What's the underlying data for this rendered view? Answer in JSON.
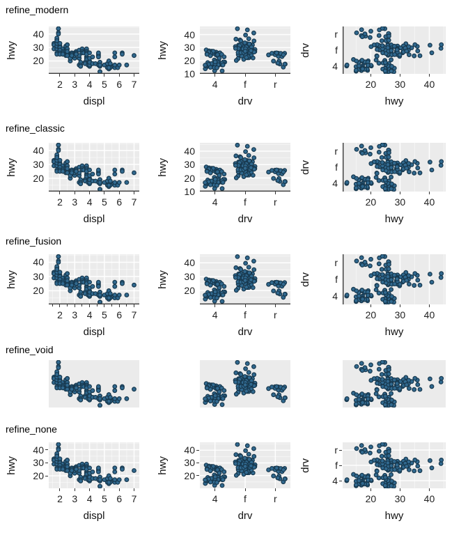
{
  "figure": {
    "background": "#ffffff",
    "panel_background": "#ebebeb",
    "grid_major_color": "#ffffff",
    "grid_minor_color": "#f5f5f5",
    "axis_line_color": "#383838",
    "tick_color": "#333333",
    "text_color": "#212121",
    "point_fill": "#31698f",
    "point_stroke": "#17384e"
  },
  "rows": [
    {
      "title": "refine_modern"
    },
    {
      "title": "refine_classic"
    },
    {
      "title": "refine_fusion"
    },
    {
      "title": "refine_void"
    },
    {
      "title": "refine_none"
    }
  ],
  "chart_data": {
    "type": "scatter",
    "description": "5x3 grid of scatter plots of the mpg dataset rendered with five themes (rows: refine_modern, refine_classic, refine_fusion, refine_void, refine_none). Columns: hwy~displ, hwy~drv (jittered), drv~hwy (jittered).",
    "dataset": {
      "fields": [
        "displ",
        "hwy",
        "drv"
      ],
      "categories": [
        "4",
        "f",
        "r"
      ],
      "points": [
        [
          1.6,
          33,
          "f"
        ],
        [
          1.6,
          32,
          "f"
        ],
        [
          1.6,
          32,
          "f"
        ],
        [
          1.6,
          29,
          "f"
        ],
        [
          1.6,
          32,
          "f"
        ],
        [
          1.8,
          29,
          "f"
        ],
        [
          1.8,
          29,
          "f"
        ],
        [
          1.8,
          31,
          "f"
        ],
        [
          1.8,
          34,
          "f"
        ],
        [
          1.8,
          36,
          "f"
        ],
        [
          1.8,
          36,
          "f"
        ],
        [
          1.8,
          33,
          "f"
        ],
        [
          1.8,
          35,
          "f"
        ],
        [
          1.8,
          37,
          "f"
        ],
        [
          1.8,
          35,
          "f"
        ],
        [
          1.9,
          44,
          "f"
        ],
        [
          1.9,
          44,
          "f"
        ],
        [
          1.9,
          41,
          "f"
        ],
        [
          1.9,
          40,
          "f"
        ],
        [
          2.0,
          31,
          "f"
        ],
        [
          2.0,
          30,
          "f"
        ],
        [
          2.0,
          29,
          "f"
        ],
        [
          2.0,
          29,
          "f"
        ],
        [
          2.0,
          31,
          "f"
        ],
        [
          2.0,
          27,
          "f"
        ],
        [
          2.0,
          30,
          "f"
        ],
        [
          2.0,
          33,
          "f"
        ],
        [
          2.2,
          29,
          "f"
        ],
        [
          2.2,
          27,
          "f"
        ],
        [
          2.4,
          30,
          "f"
        ],
        [
          2.4,
          31,
          "f"
        ],
        [
          2.4,
          27,
          "f"
        ],
        [
          2.4,
          24,
          "f"
        ],
        [
          2.5,
          32,
          "f"
        ],
        [
          2.5,
          32,
          "f"
        ],
        [
          2.5,
          29,
          "f"
        ],
        [
          2.5,
          29,
          "f"
        ],
        [
          2.5,
          26,
          "f"
        ],
        [
          2.8,
          26,
          "f"
        ],
        [
          2.8,
          26,
          "f"
        ],
        [
          2.8,
          24,
          "f"
        ],
        [
          2.8,
          25,
          "f"
        ],
        [
          2.8,
          23,
          "f"
        ],
        [
          3.0,
          26,
          "f"
        ],
        [
          3.0,
          25,
          "f"
        ],
        [
          3.0,
          22,
          "f"
        ],
        [
          3.0,
          24,
          "f"
        ],
        [
          3.1,
          27,
          "f"
        ],
        [
          3.1,
          26,
          "f"
        ],
        [
          3.1,
          25,
          "f"
        ],
        [
          3.3,
          28,
          "f"
        ],
        [
          3.3,
          22,
          "f"
        ],
        [
          3.3,
          22,
          "f"
        ],
        [
          3.3,
          24,
          "f"
        ],
        [
          3.5,
          29,
          "f"
        ],
        [
          3.5,
          27,
          "f"
        ],
        [
          3.5,
          26,
          "f"
        ],
        [
          3.6,
          26,
          "f"
        ],
        [
          3.8,
          28,
          "f"
        ],
        [
          3.8,
          29,
          "f"
        ],
        [
          3.8,
          26,
          "f"
        ],
        [
          3.8,
          27,
          "f"
        ],
        [
          3.8,
          23,
          "f"
        ],
        [
          3.8,
          22,
          "f"
        ],
        [
          3.8,
          21,
          "f"
        ],
        [
          4.0,
          20,
          "f"
        ],
        [
          4.0,
          22,
          "f"
        ],
        [
          1.8,
          26,
          "4"
        ],
        [
          1.8,
          25,
          "4"
        ],
        [
          2.0,
          28,
          "4"
        ],
        [
          2.0,
          27,
          "4"
        ],
        [
          2.0,
          27,
          "4"
        ],
        [
          2.0,
          28,
          "4"
        ],
        [
          2.0,
          26,
          "4"
        ],
        [
          2.0,
          25,
          "4"
        ],
        [
          2.2,
          26,
          "4"
        ],
        [
          2.2,
          25,
          "4"
        ],
        [
          2.5,
          25,
          "4"
        ],
        [
          2.5,
          26,
          "4"
        ],
        [
          2.5,
          27,
          "4"
        ],
        [
          2.5,
          25,
          "4"
        ],
        [
          2.5,
          26,
          "4"
        ],
        [
          2.5,
          24,
          "4"
        ],
        [
          2.5,
          27,
          "4"
        ],
        [
          2.7,
          20,
          "4"
        ],
        [
          2.7,
          20,
          "4"
        ],
        [
          2.7,
          22,
          "4"
        ],
        [
          2.8,
          25,
          "4"
        ],
        [
          2.8,
          25,
          "4"
        ],
        [
          2.8,
          24,
          "4"
        ],
        [
          3.1,
          25,
          "4"
        ],
        [
          3.1,
          25,
          "4"
        ],
        [
          3.3,
          17,
          "4"
        ],
        [
          3.4,
          19,
          "4"
        ],
        [
          3.4,
          17,
          "4"
        ],
        [
          3.4,
          16,
          "4"
        ],
        [
          3.7,
          19,
          "4"
        ],
        [
          3.7,
          18,
          "4"
        ],
        [
          3.9,
          17,
          "4"
        ],
        [
          3.9,
          17,
          "4"
        ],
        [
          4.0,
          17,
          "4"
        ],
        [
          4.0,
          16,
          "4"
        ],
        [
          4.0,
          18,
          "4"
        ],
        [
          4.0,
          17,
          "4"
        ],
        [
          4.0,
          19,
          "4"
        ],
        [
          4.2,
          23,
          "4"
        ],
        [
          4.2,
          18,
          "4"
        ],
        [
          4.4,
          18,
          "4"
        ],
        [
          4.6,
          17,
          "4"
        ],
        [
          4.7,
          19,
          "4"
        ],
        [
          4.7,
          19,
          "4"
        ],
        [
          4.7,
          17,
          "4"
        ],
        [
          4.7,
          16,
          "4"
        ],
        [
          4.7,
          12,
          "4"
        ],
        [
          4.7,
          12,
          "4"
        ],
        [
          4.7,
          17,
          "4"
        ],
        [
          5.2,
          17,
          "4"
        ],
        [
          5.2,
          15,
          "4"
        ],
        [
          5.3,
          19,
          "4"
        ],
        [
          5.3,
          14,
          "4"
        ],
        [
          5.4,
          17,
          "4"
        ],
        [
          5.4,
          15,
          "4"
        ],
        [
          5.7,
          16,
          "4"
        ],
        [
          5.7,
          15,
          "4"
        ],
        [
          5.9,
          15,
          "4"
        ],
        [
          6.5,
          17,
          "4"
        ],
        [
          3.8,
          26,
          "r"
        ],
        [
          3.8,
          25,
          "r"
        ],
        [
          4.0,
          26,
          "r"
        ],
        [
          4.6,
          24,
          "r"
        ],
        [
          4.6,
          25,
          "r"
        ],
        [
          4.6,
          26,
          "r"
        ],
        [
          4.6,
          23,
          "r"
        ],
        [
          5.0,
          17,
          "r"
        ],
        [
          5.2,
          18,
          "r"
        ],
        [
          5.3,
          20,
          "r"
        ],
        [
          5.3,
          20,
          "r"
        ],
        [
          5.3,
          15,
          "r"
        ],
        [
          5.4,
          18,
          "r"
        ],
        [
          5.7,
          17,
          "r"
        ],
        [
          5.7,
          26,
          "r"
        ],
        [
          5.7,
          23,
          "r"
        ],
        [
          6.0,
          17,
          "r"
        ],
        [
          6.2,
          26,
          "r"
        ],
        [
          6.2,
          25,
          "r"
        ],
        [
          7.0,
          24,
          "r"
        ]
      ]
    },
    "charts": [
      {
        "row": 0,
        "col": 0,
        "theme": "refine_modern",
        "x": "displ",
        "y": "hwy",
        "xlabel": "displ",
        "ylabel": "hwy",
        "x_ticks": [
          2,
          3,
          4,
          5,
          6,
          7
        ],
        "y_ticks": [
          20,
          30,
          40
        ],
        "x_minor": [
          1.5,
          2.5,
          3.5,
          4.5,
          5.5,
          6.5
        ],
        "y_minor": [
          15,
          25,
          35,
          45
        ],
        "x_range": [
          1.25,
          7.35
        ],
        "y_range": [
          10.4,
          45.6
        ],
        "grid_h": "mm",
        "grid_v": "none",
        "axis_line": "bottom",
        "ticks_x": "major",
        "ticks_y": "none"
      },
      {
        "row": 0,
        "col": 1,
        "theme": "refine_modern",
        "x": "drv",
        "y": "hwy",
        "xlabel": "drv",
        "ylabel": "hwy",
        "x_ticks": [
          "4",
          "f",
          "r"
        ],
        "y_ticks": [
          10,
          20,
          30,
          40
        ],
        "y_minor": [
          15,
          25,
          35,
          45
        ],
        "y_range": [
          9.9,
          46.2
        ],
        "grid_h": "mm",
        "grid_v": "none",
        "axis_line": "bottom",
        "ticks_x": "major",
        "ticks_y": "none"
      },
      {
        "row": 0,
        "col": 2,
        "theme": "refine_modern",
        "x": "hwy",
        "y": "drv",
        "xlabel": "hwy",
        "ylabel": "drv",
        "x_ticks": [
          20,
          30,
          40
        ],
        "y_ticks": [
          "r",
          "f",
          "4"
        ],
        "x_minor": [
          15,
          25,
          35,
          45
        ],
        "x_range": [
          10.4,
          45.6
        ],
        "grid_h": "none",
        "grid_v": "mm",
        "axis_line": "left",
        "ticks_x": "major",
        "ticks_y": "none"
      },
      {
        "row": 1,
        "col": 0,
        "theme": "refine_classic",
        "x": "displ",
        "y": "hwy",
        "xlabel": "displ",
        "ylabel": "hwy",
        "x_ticks": [
          2,
          3,
          4,
          5,
          6,
          7
        ],
        "y_ticks": [
          20,
          30,
          40
        ],
        "x_minor": [
          1.5,
          2.5,
          3.5,
          4.5,
          5.5,
          6.5
        ],
        "y_minor": [
          15,
          25,
          35,
          45
        ],
        "x_range": [
          1.25,
          7.35
        ],
        "y_range": [
          10.4,
          45.6
        ],
        "grid_h": "mm",
        "grid_v": "mm",
        "axis_line": "bottom",
        "ticks_x": "major",
        "ticks_y": "none"
      },
      {
        "row": 1,
        "col": 1,
        "theme": "refine_classic",
        "x": "drv",
        "y": "hwy",
        "xlabel": "drv",
        "ylabel": "hwy",
        "x_ticks": [
          "4",
          "f",
          "r"
        ],
        "y_ticks": [
          10,
          20,
          30,
          40
        ],
        "y_minor": [
          15,
          25,
          35,
          45
        ],
        "y_range": [
          9.9,
          46.2
        ],
        "grid_h": "mm",
        "grid_v": "none",
        "axis_line": "bottom",
        "ticks_x": "major",
        "ticks_y": "none"
      },
      {
        "row": 1,
        "col": 2,
        "theme": "refine_classic",
        "x": "hwy",
        "y": "drv",
        "xlabel": "hwy",
        "ylabel": "drv",
        "x_ticks": [
          20,
          30,
          40
        ],
        "y_ticks": [
          "r",
          "f",
          "4"
        ],
        "x_minor": [
          15,
          25,
          35,
          45
        ],
        "x_range": [
          10.4,
          45.6
        ],
        "grid_h": "none",
        "grid_v": "mm",
        "axis_line": "left",
        "ticks_x": "major",
        "ticks_y": "none"
      },
      {
        "row": 2,
        "col": 0,
        "theme": "refine_fusion",
        "x": "displ",
        "y": "hwy",
        "xlabel": "displ",
        "ylabel": "hwy",
        "x_ticks": [
          2,
          3,
          4,
          5,
          6,
          7
        ],
        "y_ticks": [
          20,
          30,
          40
        ],
        "x_minor": [
          1.5,
          2.5,
          3.5,
          4.5,
          5.5,
          6.5
        ],
        "y_minor": [
          15,
          25,
          35,
          45
        ],
        "x_range": [
          1.25,
          7.35
        ],
        "y_range": [
          10.4,
          45.6
        ],
        "grid_h": "mm",
        "grid_v": "mm",
        "axis_line": "bottom",
        "ticks_x": "major+minor",
        "ticks_y": "none"
      },
      {
        "row": 2,
        "col": 1,
        "theme": "refine_fusion",
        "x": "drv",
        "y": "hwy",
        "xlabel": "drv",
        "ylabel": "hwy",
        "x_ticks": [
          "4",
          "f",
          "r"
        ],
        "y_ticks": [
          20,
          30,
          40
        ],
        "y_minor": [
          15,
          25,
          35,
          45
        ],
        "y_range": [
          9.9,
          46.2
        ],
        "grid_h": "mm",
        "grid_v": "none",
        "axis_line": "bottom",
        "ticks_x": "major",
        "ticks_y": "none"
      },
      {
        "row": 2,
        "col": 2,
        "theme": "refine_fusion",
        "x": "hwy",
        "y": "drv",
        "xlabel": "hwy",
        "ylabel": "drv",
        "x_ticks": [
          20,
          30,
          40
        ],
        "y_ticks": [
          "r",
          "f",
          "4"
        ],
        "x_minor": [
          15,
          25,
          35,
          45
        ],
        "x_range": [
          10.4,
          45.6
        ],
        "grid_h": "none",
        "grid_v": "mm",
        "axis_line": "left",
        "ticks_x": "major",
        "ticks_y": "none"
      },
      {
        "row": 3,
        "col": 0,
        "theme": "refine_void",
        "x": "displ",
        "y": "hwy",
        "xlabel": "",
        "ylabel": "",
        "x_ticks": [],
        "y_ticks": [],
        "x_range": [
          1.25,
          7.35
        ],
        "y_range": [
          10.4,
          45.6
        ],
        "grid_h": "none",
        "grid_v": "none",
        "axis_line": "none",
        "ticks_x": "none",
        "ticks_y": "none"
      },
      {
        "row": 3,
        "col": 1,
        "theme": "refine_void",
        "x": "drv",
        "y": "hwy",
        "xlabel": "",
        "ylabel": "",
        "x_ticks": [],
        "y_ticks": [],
        "y_range": [
          9.9,
          46.2
        ],
        "grid_h": "none",
        "grid_v": "none",
        "axis_line": "none",
        "ticks_x": "none",
        "ticks_y": "none"
      },
      {
        "row": 3,
        "col": 2,
        "theme": "refine_void",
        "x": "hwy",
        "y": "drv",
        "xlabel": "",
        "ylabel": "",
        "x_ticks": [],
        "y_ticks": [],
        "x_range": [
          10.4,
          45.6
        ],
        "grid_h": "none",
        "grid_v": "none",
        "axis_line": "none",
        "ticks_x": "none",
        "ticks_y": "none"
      },
      {
        "row": 4,
        "col": 0,
        "theme": "refine_none",
        "x": "displ",
        "y": "hwy",
        "xlabel": "displ",
        "ylabel": "hwy",
        "x_ticks": [
          2,
          3,
          4,
          5,
          6,
          7
        ],
        "y_ticks": [
          20,
          30,
          40
        ],
        "x_minor": [
          1.5,
          2.5,
          3.5,
          4.5,
          5.5,
          6.5
        ],
        "y_minor": [
          15,
          25,
          35,
          45
        ],
        "x_range": [
          1.25,
          7.35
        ],
        "y_range": [
          10.4,
          45.6
        ],
        "grid_h": "mm",
        "grid_v": "mm",
        "axis_line": "none",
        "ticks_x": "major",
        "ticks_y": "major"
      },
      {
        "row": 4,
        "col": 1,
        "theme": "refine_none",
        "x": "drv",
        "y": "hwy",
        "xlabel": "drv",
        "ylabel": "hwy",
        "x_ticks": [
          "4",
          "f",
          "r"
        ],
        "y_ticks": [
          20,
          30,
          40
        ],
        "y_minor": [
          15,
          25,
          35,
          45
        ],
        "y_range": [
          9.9,
          46.2
        ],
        "grid_h": "mm",
        "grid_v": "cats",
        "axis_line": "none",
        "ticks_x": "major",
        "ticks_y": "major"
      },
      {
        "row": 4,
        "col": 2,
        "theme": "refine_none",
        "x": "hwy",
        "y": "drv",
        "xlabel": "hwy",
        "ylabel": "drv",
        "x_ticks": [
          20,
          30,
          40
        ],
        "y_ticks": [
          "r",
          "f",
          "4"
        ],
        "x_minor": [
          15,
          25,
          35,
          45
        ],
        "x_range": [
          10.4,
          45.6
        ],
        "grid_h": "cats",
        "grid_v": "mm",
        "axis_line": "none",
        "ticks_x": "major",
        "ticks_y": "major"
      }
    ]
  }
}
